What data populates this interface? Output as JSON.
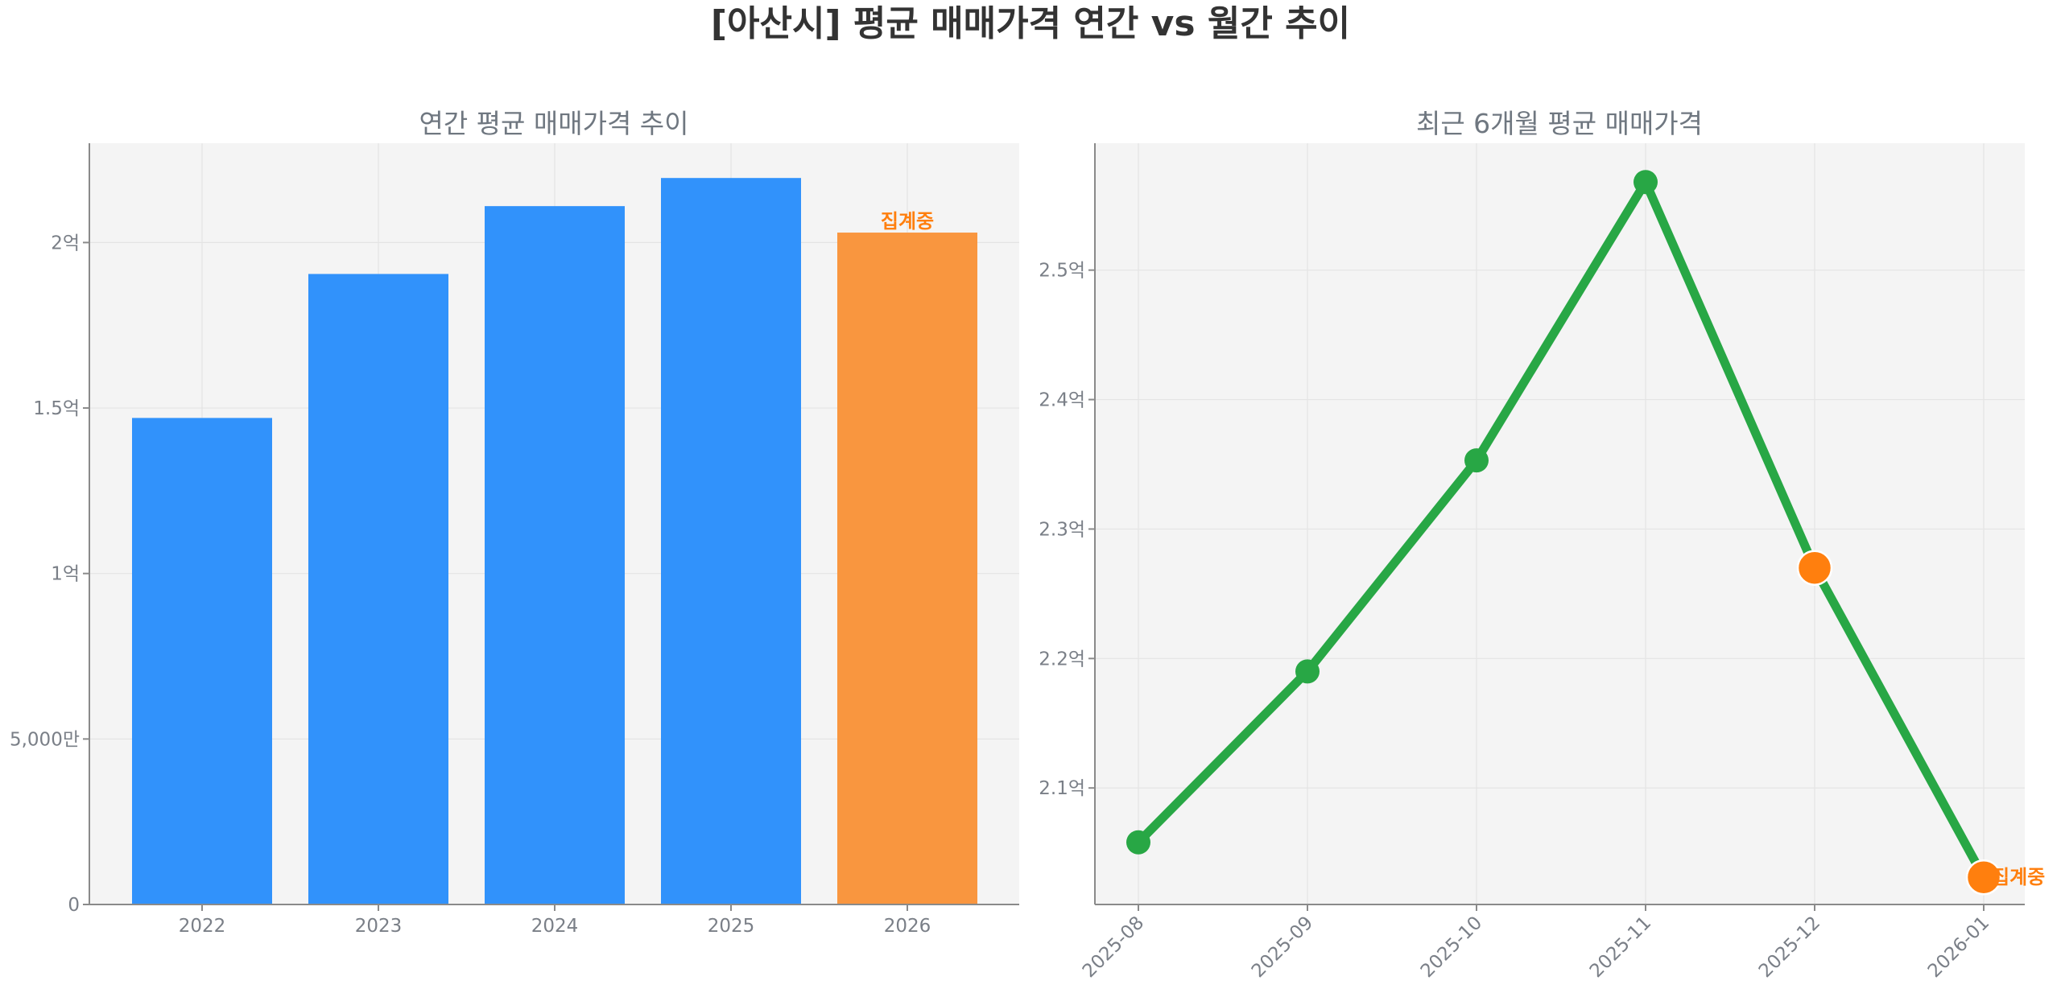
{
  "title": "[아산시] 평균 매매가격 연간 vs 월간 추이",
  "colors": {
    "bar": "#3192fb",
    "partial": "#f9963f",
    "line": "#28a745",
    "partial_point": "#ff7f0e",
    "panel_bg": "#f4f4f4"
  },
  "chart_data": [
    {
      "type": "bar",
      "title": "연간 평균 매매가격 추이",
      "categories": [
        "2022",
        "2023",
        "2024",
        "2025",
        "2026"
      ],
      "values": [
        147000000,
        190500000,
        211000000,
        219500000,
        203000000
      ],
      "partial_index": 4,
      "annotation": "집계중",
      "ylim": [
        0,
        230000000
      ],
      "yticks": [
        0,
        50000000,
        100000000,
        150000000,
        200000000
      ],
      "ytick_labels": [
        "0",
        "5,000만",
        "1억",
        "1.5억",
        "2억"
      ],
      "grid": true
    },
    {
      "type": "line",
      "title": "최근 6개월 평균 매매가격",
      "categories": [
        "2025-08",
        "2025-09",
        "2025-10",
        "2025-11",
        "2025-12",
        "2026-01"
      ],
      "values": [
        205800000,
        219000000,
        235300000,
        256800000,
        227000000,
        203100000
      ],
      "partial_indices": [
        4,
        5
      ],
      "annotation": "집계중",
      "ylim": [
        201000000,
        259800000
      ],
      "yticks": [
        210000000,
        220000000,
        230000000,
        240000000,
        250000000
      ],
      "ytick_labels": [
        "2.1억",
        "2.2억",
        "2.3억",
        "2.4억",
        "2.5억"
      ],
      "grid": true
    }
  ]
}
